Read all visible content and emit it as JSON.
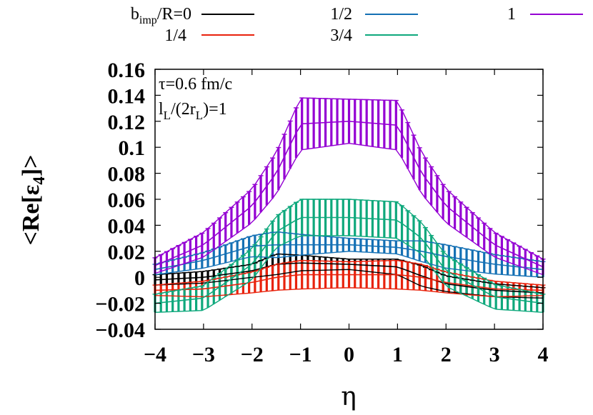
{
  "chart_data": {
    "type": "line",
    "x_min": -4,
    "x_max": 4,
    "xlabel": "η",
    "ylabel_main": "<Re[ε",
    "ylabel_sub": "4",
    "ylabel_end": "]>",
    "xlim": [
      -4,
      4
    ],
    "ylim": [
      -0.04,
      0.16
    ],
    "x_ticks": [
      "−4",
      "−3",
      "−2",
      "−1",
      "0",
      "1",
      "2",
      "3",
      "4"
    ],
    "y_ticks": [
      "0.16",
      "0.14",
      "0.12",
      "0.1",
      "0.08",
      "0.06",
      "0.04",
      "0.02",
      "0",
      "−0.02",
      "−0.04"
    ],
    "y_tick_values": [
      0.16,
      0.14,
      0.12,
      0.1,
      0.08,
      0.06,
      0.04,
      0.02,
      0,
      -0.02,
      -0.04
    ],
    "grid": false,
    "legend_position": "top",
    "annotation": {
      "line1": "τ=0.6 fm/c",
      "line2_a": "l",
      "line2_sub1": "L",
      "line2_b": "/(2r",
      "line2_sub2": "L",
      "line2_c": ")=1"
    },
    "series": [
      {
        "name_main": "b",
        "name_sub": "imp",
        "name_rest": "/R=0",
        "color": "#000000",
        "points": [
          [
            -4,
            -0.002
          ],
          [
            -3,
            0.0
          ],
          [
            -2,
            0.005
          ],
          [
            -1.5,
            0.01
          ],
          [
            -1,
            0.011
          ],
          [
            0,
            0.01
          ],
          [
            1,
            0.008
          ],
          [
            1.5,
            0.001
          ],
          [
            2,
            -0.005
          ],
          [
            3,
            -0.01
          ],
          [
            4,
            -0.012
          ]
        ],
        "err": [
          [
            -4,
            0.004
          ],
          [
            -2,
            0.005
          ],
          [
            -1.5,
            0.008
          ],
          [
            -1,
            0.006
          ],
          [
            0,
            0.004
          ],
          [
            1,
            0.006
          ],
          [
            1.5,
            0.008
          ],
          [
            2,
            0.006
          ],
          [
            4,
            0.004
          ]
        ]
      },
      {
        "name_main": "1/4",
        "name_sub": "",
        "name_rest": "",
        "color": "#e8220c",
        "points": [
          [
            -4,
            -0.01
          ],
          [
            -3,
            -0.009
          ],
          [
            -2,
            -0.004
          ],
          [
            -1.5,
            0.0
          ],
          [
            -1,
            0.002
          ],
          [
            0,
            0.002
          ],
          [
            1,
            0.002
          ],
          [
            1.5,
            0.0
          ],
          [
            2,
            -0.004
          ],
          [
            3,
            -0.009
          ],
          [
            4,
            -0.01
          ]
        ],
        "err": [
          [
            -4,
            0.004
          ],
          [
            -2,
            0.008
          ],
          [
            -1.5,
            0.01
          ],
          [
            -1,
            0.011
          ],
          [
            0,
            0.01
          ],
          [
            1,
            0.011
          ],
          [
            1.5,
            0.01
          ],
          [
            2,
            0.008
          ],
          [
            4,
            0.004
          ]
        ]
      },
      {
        "name_main": "1/2",
        "name_sub": "",
        "name_rest": "",
        "color": "#1470b4",
        "points": [
          [
            -4,
            0.006
          ],
          [
            -3,
            0.013
          ],
          [
            -2,
            0.024
          ],
          [
            -1.5,
            0.025
          ],
          [
            -1,
            0.025
          ],
          [
            0,
            0.025
          ],
          [
            1,
            0.023
          ],
          [
            1.5,
            0.02
          ],
          [
            2,
            0.016
          ],
          [
            3,
            0.01
          ],
          [
            4,
            0.006
          ]
        ],
        "err": [
          [
            -4,
            0.004
          ],
          [
            -2,
            0.008
          ],
          [
            -1.5,
            0.01
          ],
          [
            -1,
            0.008
          ],
          [
            0,
            0.005
          ],
          [
            1,
            0.005
          ],
          [
            1.5,
            0.008
          ],
          [
            2,
            0.009
          ],
          [
            4,
            0.006
          ]
        ]
      },
      {
        "name_main": "3/4",
        "name_sub": "",
        "name_rest": "",
        "color": "#0ea87c",
        "points": [
          [
            -4,
            -0.02
          ],
          [
            -3,
            -0.016
          ],
          [
            -2,
            0.01
          ],
          [
            -1.5,
            0.035
          ],
          [
            -1,
            0.046
          ],
          [
            0,
            0.046
          ],
          [
            1,
            0.044
          ],
          [
            1.5,
            0.03
          ],
          [
            2,
            0.005
          ],
          [
            3,
            -0.015
          ],
          [
            4,
            -0.02
          ]
        ],
        "err": [
          [
            -4,
            0.007
          ],
          [
            -2,
            0.012
          ],
          [
            -1.5,
            0.012
          ],
          [
            -1,
            0.014
          ],
          [
            0,
            0.014
          ],
          [
            1,
            0.014
          ],
          [
            1.5,
            0.012
          ],
          [
            2,
            0.012
          ],
          [
            4,
            0.007
          ]
        ]
      },
      {
        "name_main": "1",
        "name_sub": "",
        "name_rest": "",
        "color": "#9400d3",
        "points": [
          [
            -4,
            0.009
          ],
          [
            -3,
            0.025
          ],
          [
            -2,
            0.055
          ],
          [
            -1.5,
            0.08
          ],
          [
            -1,
            0.118
          ],
          [
            0,
            0.12
          ],
          [
            1,
            0.117
          ],
          [
            1.5,
            0.08
          ],
          [
            2,
            0.055
          ],
          [
            3,
            0.025
          ],
          [
            4,
            0.008
          ]
        ],
        "err": [
          [
            -4,
            0.006
          ],
          [
            -2,
            0.013
          ],
          [
            -1.5,
            0.016
          ],
          [
            -1,
            0.02
          ],
          [
            0,
            0.017
          ],
          [
            1,
            0.019
          ],
          [
            1.5,
            0.016
          ],
          [
            2,
            0.013
          ],
          [
            4,
            0.006
          ]
        ]
      }
    ]
  }
}
